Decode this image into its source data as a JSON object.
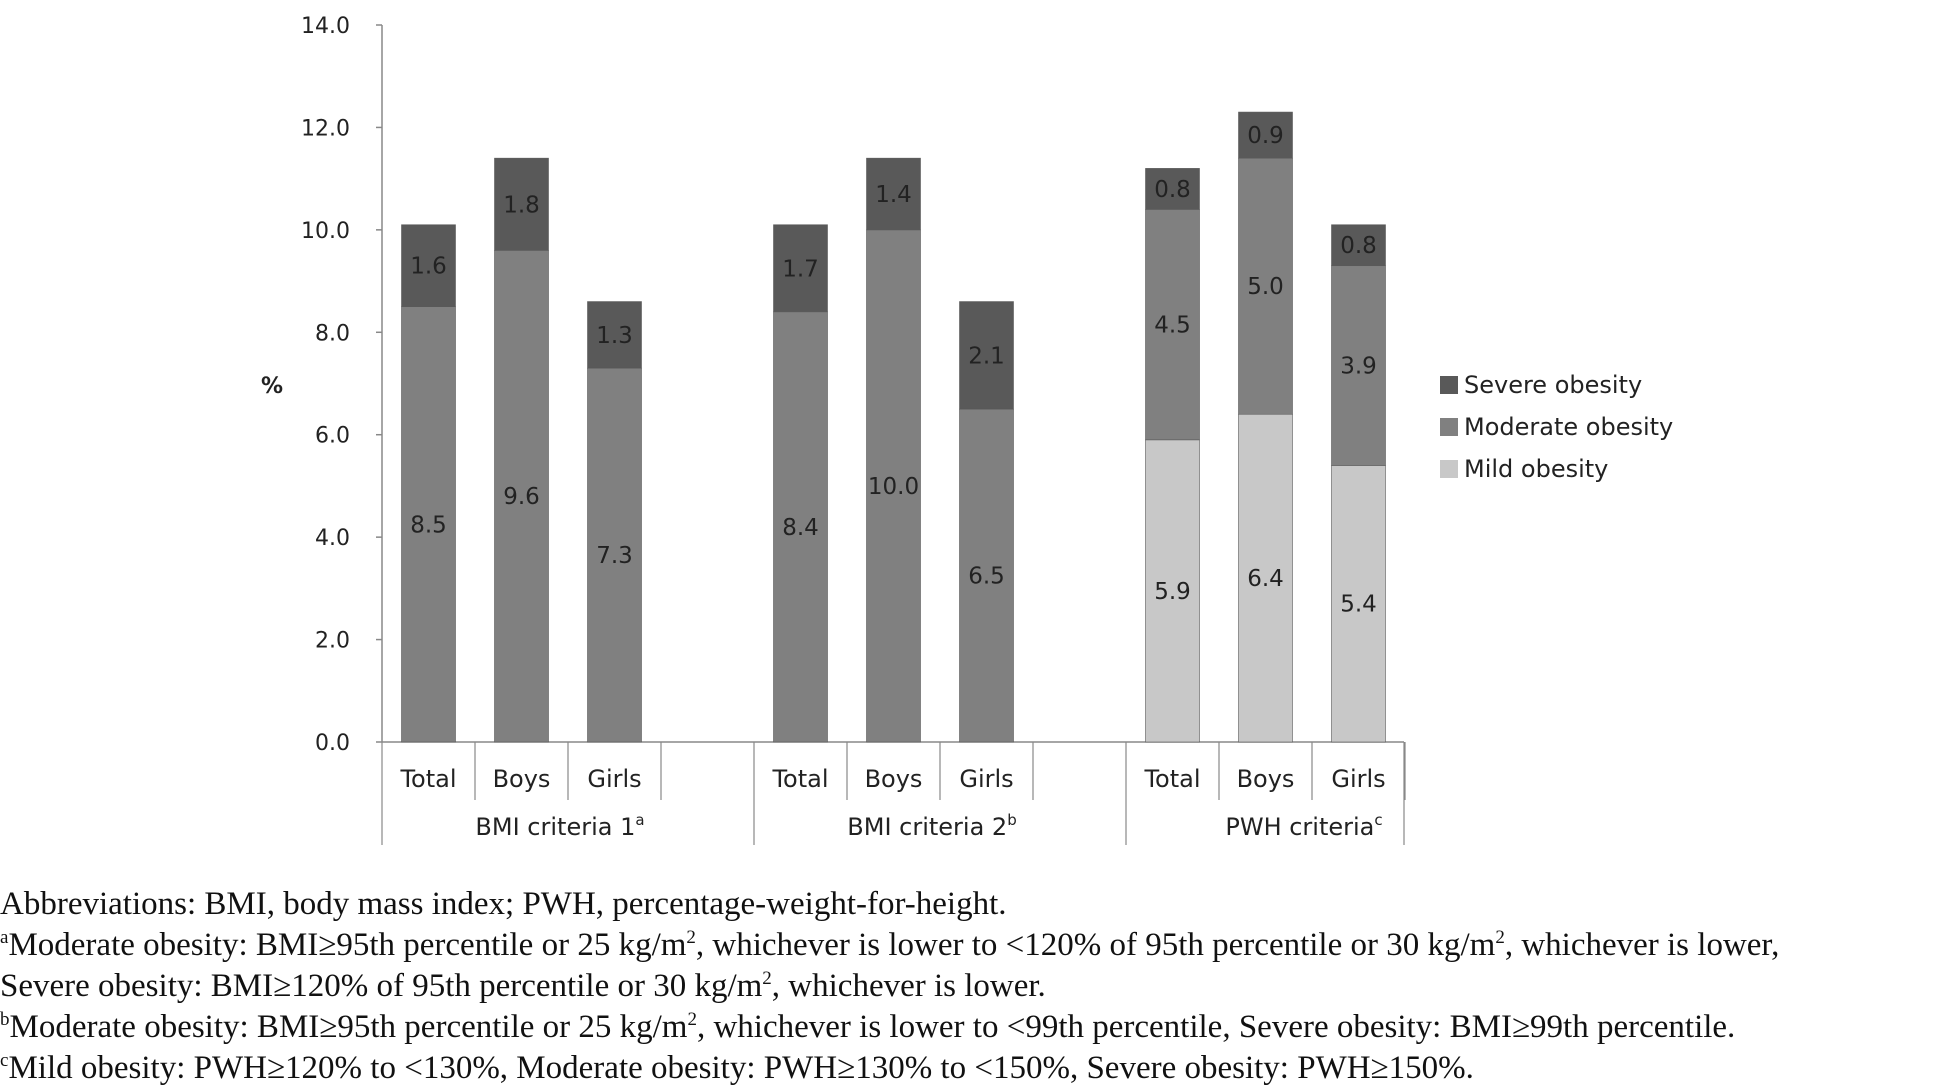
{
  "chart_data": {
    "type": "bar",
    "stacked": true,
    "ylabel": "%",
    "ylim": [
      0,
      14
    ],
    "yticks": [
      "0.0",
      "2.0",
      "4.0",
      "6.0",
      "8.0",
      "10.0",
      "12.0",
      "14.0"
    ],
    "grid": false,
    "legend_position": "right",
    "groups": [
      {
        "label": "BMI criteria 1",
        "sup": "a",
        "categories": [
          "Total",
          "Boys",
          "Girls"
        ]
      },
      {
        "label": "BMI criteria 2",
        "sup": "b",
        "categories": [
          "Total",
          "Boys",
          "Girls"
        ]
      },
      {
        "label": "PWH criteria",
        "sup": "c",
        "categories": [
          "Total",
          "Boys",
          "Girls"
        ]
      }
    ],
    "series": [
      {
        "name": "Mild obesity",
        "color": "#c8c8c8",
        "values": [
          [
            null,
            null,
            null
          ],
          [
            null,
            null,
            null
          ],
          [
            5.9,
            6.4,
            5.4
          ]
        ],
        "labels": [
          [
            "",
            "",
            ""
          ],
          [
            "",
            "",
            ""
          ],
          [
            "5.9",
            "6.4",
            "5.4"
          ]
        ]
      },
      {
        "name": "Moderate obesity",
        "color": "#808080",
        "values": [
          [
            8.5,
            9.6,
            7.3
          ],
          [
            8.4,
            10.0,
            6.5
          ],
          [
            4.5,
            5.0,
            3.9
          ]
        ],
        "labels": [
          [
            "8.5",
            "9.6",
            "7.3"
          ],
          [
            "8.4",
            "10.0",
            "6.5"
          ],
          [
            "4.5",
            "5.0",
            "3.9"
          ]
        ]
      },
      {
        "name": "Severe obesity",
        "color": "#595959",
        "values": [
          [
            1.6,
            1.8,
            1.3
          ],
          [
            1.7,
            1.4,
            2.1
          ],
          [
            0.8,
            0.9,
            0.8
          ]
        ],
        "labels": [
          [
            "1.6",
            "1.8",
            "1.3"
          ],
          [
            "1.7",
            "1.4",
            "2.1"
          ],
          [
            "0.8",
            "0.9",
            "0.8"
          ]
        ]
      }
    ],
    "legend_order": [
      "Severe obesity",
      "Moderate obesity",
      "Mild obesity"
    ]
  },
  "notes": {
    "abbreviations": "Abbreviations: BMI, body mass index; PWH, percentage-weight-for-height.",
    "a": {
      "marker": "a",
      "line1_part1": "Moderate obesity: BMI≥95th percentile or 25 kg/m",
      "line1_part2": ", whichever is lower to <120% of 95th percentile or 30 kg/m",
      "line1_part3": ", whichever is lower,",
      "line2_part1": "Severe obesity: BMI≥120% of 95th percentile or 30 kg/m",
      "line2_part2": ", whichever is lower.",
      "exponent": "2"
    },
    "b": {
      "marker": "b",
      "part1": "Moderate obesity: BMI≥95th percentile or 25 kg/m",
      "part2": ", whichever is lower to <99th percentile, Severe obesity: BMI≥99th percentile.",
      "exponent": "2"
    },
    "c": {
      "marker": "c",
      "text": "Mild obesity: PWH≥120% to <130%, Moderate obesity: PWH≥130% to <150%, Severe obesity: PWH≥150%."
    }
  }
}
